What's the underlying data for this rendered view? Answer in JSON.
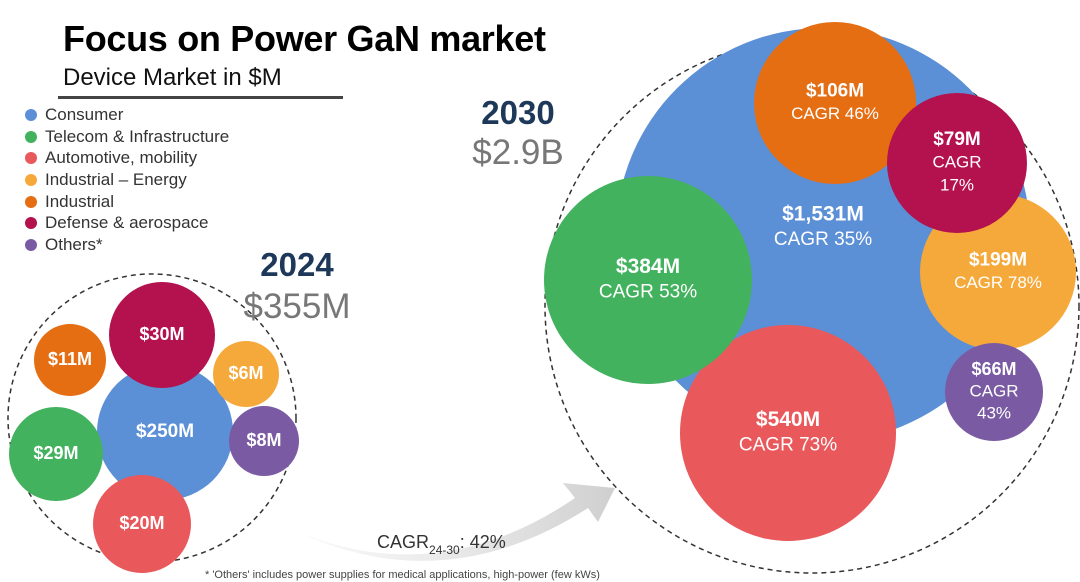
{
  "page": {
    "title": "Focus on Power GaN market",
    "subtitle": "Device Market in $M"
  },
  "legend": [
    {
      "label": "Consumer",
      "color": "#5b8fd6"
    },
    {
      "label": "Telecom & Infrastructure",
      "color": "#43b25e"
    },
    {
      "label": "Automotive, mobility",
      "color": "#e9585b"
    },
    {
      "label": "Industrial – Energy",
      "color": "#f6a93b"
    },
    {
      "label": "Industrial",
      "color": "#e56d12"
    },
    {
      "label": "Defense & aerospace",
      "color": "#b3124f"
    },
    {
      "label": "Others*",
      "color": "#7a5ba3"
    }
  ],
  "cagr_arrow": {
    "prefix": "CAGR",
    "sub": "24-30",
    "suffix": ": 42%"
  },
  "footnote": "* 'Others' includes power supplies for medical applications, high-power (few kWs)",
  "chart_data": [
    {
      "type": "bubble",
      "year": "2024",
      "total_label": "$355M",
      "total_value_musd": 355,
      "segments": [
        {
          "category": "Consumer",
          "value": 250,
          "label": "$250M"
        },
        {
          "category": "Defense & aerospace",
          "value": 30,
          "label": "$30M"
        },
        {
          "category": "Telecom & Infrastructure",
          "value": 29,
          "label": "$29M"
        },
        {
          "category": "Automotive, mobility",
          "value": 20,
          "label": "$20M"
        },
        {
          "category": "Industrial",
          "value": 11,
          "label": "$11M"
        },
        {
          "category": "Others*",
          "value": 8,
          "label": "$8M"
        },
        {
          "category": "Industrial – Energy",
          "value": 6,
          "label": "$6M"
        }
      ]
    },
    {
      "type": "bubble",
      "year": "2030",
      "total_label": "$2.9B",
      "total_value_musd": 2900,
      "segments": [
        {
          "category": "Consumer",
          "value": 1531,
          "label": "$1,531M",
          "cagr_lines": [
            "CAGR 35%"
          ]
        },
        {
          "category": "Automotive, mobility",
          "value": 540,
          "label": "$540M",
          "cagr_lines": [
            "CAGR 73%"
          ]
        },
        {
          "category": "Telecom & Infrastructure",
          "value": 384,
          "label": "$384M",
          "cagr_lines": [
            "CAGR 53%"
          ]
        },
        {
          "category": "Industrial – Energy",
          "value": 199,
          "label": "$199M",
          "cagr_lines": [
            "CAGR 78%"
          ]
        },
        {
          "category": "Industrial",
          "value": 106,
          "label": "$106M",
          "cagr_lines": [
            "CAGR 46%"
          ]
        },
        {
          "category": "Defense & aerospace",
          "value": 79,
          "label": "$79M",
          "cagr_lines": [
            "CAGR",
            "17%"
          ]
        },
        {
          "category": "Others*",
          "value": 66,
          "label": "$66M",
          "cagr_lines": [
            "CAGR",
            "43%"
          ]
        }
      ]
    }
  ]
}
